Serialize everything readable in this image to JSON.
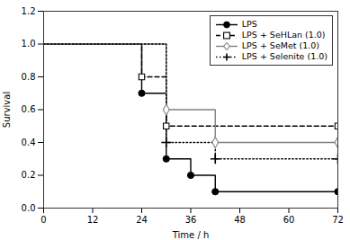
{
  "chart_data": {
    "type": "line",
    "xlabel": "Time / h",
    "ylabel": "Survival",
    "xlim": [
      0,
      72
    ],
    "ylim": [
      0.0,
      1.2
    ],
    "xticks": [
      0,
      12,
      24,
      36,
      48,
      60,
      72
    ],
    "yticks": [
      {
        "value": 0.0,
        "label": "0.0"
      },
      0.2,
      0.4,
      0.6,
      0.8,
      {
        "value": 1.0,
        "label": "1.0"
      },
      1.2
    ],
    "grid": false,
    "legend": "upper right",
    "series": [
      {
        "name": "LPS",
        "color": "black",
        "line_style": "solid",
        "marker": "circle",
        "x": [
          0,
          24,
          24,
          30,
          30,
          36,
          36,
          42,
          42,
          72
        ],
        "values": [
          1.0,
          1.0,
          0.7,
          0.7,
          0.3,
          0.3,
          0.2,
          0.2,
          0.1,
          0.1
        ],
        "marker_x": [
          24,
          30,
          36,
          42,
          72
        ],
        "marker_values": [
          0.7,
          0.3,
          0.2,
          0.1,
          0.1
        ]
      },
      {
        "name": "LPS + SeHLan (1.0)",
        "color": "black",
        "line_style": "dashed",
        "marker": "square",
        "x": [
          0,
          24,
          24,
          30,
          30,
          72
        ],
        "values": [
          1.0,
          1.0,
          0.8,
          0.8,
          0.5,
          0.5
        ],
        "marker_x": [
          24,
          30,
          72
        ],
        "marker_values": [
          0.8,
          0.5,
          0.5
        ]
      },
      {
        "name": "LPS + SeMet (1.0)",
        "color": "#808080",
        "line_style": "solid",
        "marker": "diamond",
        "x": [
          0,
          30,
          30,
          42,
          42,
          72
        ],
        "values": [
          1.0,
          1.0,
          0.6,
          0.6,
          0.4,
          0.4
        ],
        "marker_x": [
          30,
          42,
          72
        ],
        "marker_values": [
          0.6,
          0.4,
          0.4
        ]
      },
      {
        "name": "LPS + Selenite (1.0)",
        "color": "black",
        "line_style": "dotted",
        "marker": "plus",
        "x": [
          0,
          30,
          30,
          42,
          42,
          72
        ],
        "values": [
          1.0,
          1.0,
          0.4,
          0.4,
          0.3,
          0.3
        ],
        "marker_x": [
          30,
          42,
          72
        ],
        "marker_values": [
          0.4,
          0.3,
          0.3
        ]
      }
    ]
  }
}
